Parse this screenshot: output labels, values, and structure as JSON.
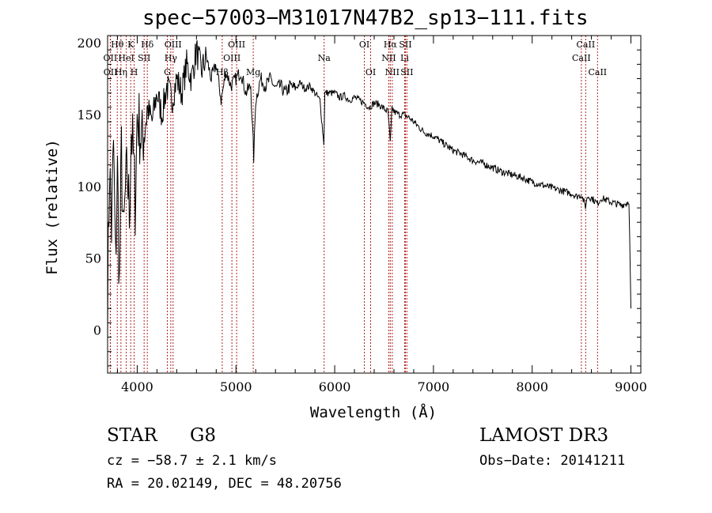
{
  "chart_data": {
    "type": "line",
    "title": "spec−57003−M31017N47B2_sp13−111.fits",
    "xlabel": "Wavelength (Å)",
    "ylabel": "Flux (relative)",
    "xlim": [
      3700,
      9100
    ],
    "ylim": [
      -30,
      205
    ],
    "xticks": [
      4000,
      5000,
      6000,
      7000,
      8000,
      9000
    ],
    "yticks": [
      0,
      50,
      100,
      150,
      200
    ],
    "xtick_labels": [
      "4000",
      "5000",
      "6000",
      "7000",
      "8000",
      "9000"
    ],
    "ytick_labels": [
      "0",
      "50",
      "100",
      "150",
      "200"
    ],
    "series": [
      {
        "name": "flux",
        "x": [
          3700,
          3720,
          3740,
          3760,
          3780,
          3800,
          3820,
          3840,
          3860,
          3880,
          3900,
          3920,
          3940,
          3960,
          3980,
          4000,
          4050,
          4100,
          4150,
          4200,
          4250,
          4300,
          4350,
          4400,
          4450,
          4500,
          4550,
          4600,
          4650,
          4700,
          4750,
          4800,
          4850,
          4900,
          4950,
          5000,
          5050,
          5100,
          5150,
          5180,
          5200,
          5250,
          5300,
          5350,
          5400,
          5450,
          5500,
          5550,
          5600,
          5650,
          5700,
          5750,
          5800,
          5850,
          5890,
          5900,
          5950,
          6000,
          6050,
          6100,
          6150,
          6200,
          6250,
          6300,
          6350,
          6400,
          6450,
          6500,
          6540,
          6563,
          6580,
          6600,
          6650,
          6700,
          6750,
          6800,
          6900,
          7000,
          7100,
          7200,
          7300,
          7400,
          7500,
          7600,
          7700,
          7800,
          7900,
          8000,
          8100,
          8200,
          8300,
          8400,
          8450,
          8500,
          8540,
          8560,
          8600,
          8662,
          8700,
          8800,
          8900,
          8950,
          8980,
          9000
        ],
        "y": [
          20,
          115,
          70,
          130,
          45,
          110,
          30,
          125,
          60,
          95,
          110,
          80,
          140,
          120,
          90,
          150,
          130,
          155,
          145,
          165,
          150,
          170,
          160,
          175,
          165,
          185,
          175,
          195,
          180,
          190,
          175,
          185,
          160,
          180,
          170,
          175,
          180,
          165,
          170,
          120,
          160,
          175,
          170,
          175,
          168,
          170,
          165,
          170,
          168,
          172,
          168,
          170,
          165,
          160,
          130,
          165,
          165,
          165,
          162,
          163,
          160,
          162,
          160,
          158,
          155,
          158,
          157,
          154,
          152,
          130,
          155,
          152,
          150,
          150,
          148,
          145,
          138,
          135,
          130,
          125,
          122,
          118,
          116,
          113,
          110,
          108,
          106,
          103,
          101,
          99,
          97,
          95,
          93,
          94,
          86,
          93,
          92,
          88,
          92,
          89,
          87,
          88,
          90,
          15
        ]
      }
    ],
    "lines": [
      {
        "name": "Hθ",
        "wl": 3798,
        "row": 1
      },
      {
        "name": "OII",
        "wl": 3727,
        "row": 2
      },
      {
        "name": "OII",
        "wl": 3729,
        "row": 3
      },
      {
        "name": "K",
        "wl": 3934,
        "row": 1
      },
      {
        "name": "Hη",
        "wl": 3835,
        "row": 3
      },
      {
        "name": "HeI",
        "wl": 3889,
        "row": 2
      },
      {
        "name": "H",
        "wl": 3969,
        "row": 3
      },
      {
        "name": "SII",
        "wl": 4070,
        "row": 2
      },
      {
        "name": "Hδ",
        "wl": 4102,
        "row": 1
      },
      {
        "name": "G",
        "wl": 4305,
        "row": 3
      },
      {
        "name": "OIII",
        "wl": 4363,
        "row": 1
      },
      {
        "name": "Hγ",
        "wl": 4340,
        "row": 2
      },
      {
        "name": "Hβ",
        "wl": 4861,
        "row": 3
      },
      {
        "name": "OIII",
        "wl": 4959,
        "row": 2
      },
      {
        "name": "OIII",
        "wl": 5007,
        "row": 1
      },
      {
        "name": "Mg",
        "wl": 5175,
        "row": 3
      },
      {
        "name": "Na",
        "wl": 5893,
        "row": 2
      },
      {
        "name": "OI",
        "wl": 6300,
        "row": 1
      },
      {
        "name": "OI",
        "wl": 6364,
        "row": 3
      },
      {
        "name": "NII",
        "wl": 6548,
        "row": 2
      },
      {
        "name": "Hα",
        "wl": 6563,
        "row": 1
      },
      {
        "name": "NII",
        "wl": 6583,
        "row": 3
      },
      {
        "name": "Li",
        "wl": 6708,
        "row": 2
      },
      {
        "name": "SII",
        "wl": 6716,
        "row": 1
      },
      {
        "name": "SII",
        "wl": 6731,
        "row": 3
      },
      {
        "name": "CaII",
        "wl": 8498,
        "row": 2
      },
      {
        "name": "CaII",
        "wl": 8542,
        "row": 1
      },
      {
        "name": "CaII",
        "wl": 8662,
        "row": 3
      }
    ],
    "colors": {
      "spectrum": "#000000",
      "lines": "#b22222",
      "axes": "#000000"
    }
  },
  "footer": {
    "class": "STAR",
    "subclass": "G8",
    "survey": "LAMOST DR3",
    "cz": "cz = −58.7 ± 2.1 km/s",
    "obs_date": "Obs−Date: 20141211",
    "radec": "RA =  20.02149, DEC =  48.20756"
  }
}
